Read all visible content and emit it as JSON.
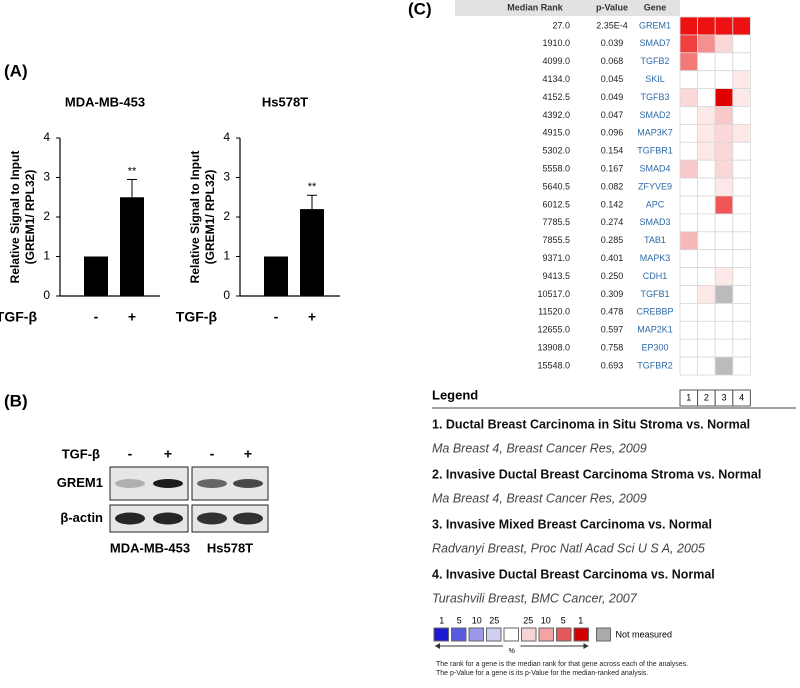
{
  "panel_labels": [
    "(A)",
    "(B)",
    "(C)"
  ],
  "chart_data": [
    {
      "type": "bar",
      "title": "MDA-MB-453",
      "y_label": [
        "Relative Signal to Input",
        "(GREM1/ RPL32)"
      ],
      "x_label": "TGF-β",
      "categories": [
        "-",
        "+"
      ],
      "values": [
        1,
        2.5
      ],
      "errors": [
        0,
        0.45
      ],
      "annotations": [
        null,
        "**"
      ],
      "color": "#000000",
      "ylim": [
        0,
        4
      ],
      "yticks": [
        0,
        1,
        2,
        3,
        4
      ]
    },
    {
      "type": "bar",
      "title": "Hs578T",
      "y_label": [
        "Relative Signal to Input",
        "(GREM1/ RPL32)"
      ],
      "x_label": "TGF-β",
      "categories": [
        "-",
        "+"
      ],
      "values": [
        1,
        2.2
      ],
      "errors": [
        0,
        0.35
      ],
      "annotations": [
        null,
        "**"
      ],
      "color": "#000000",
      "ylim": [
        0,
        4
      ],
      "yticks": [
        0,
        1,
        2,
        3,
        4
      ]
    }
  ],
  "blot": {
    "treatment_label": "TGF-β",
    "treatments": [
      "-",
      "+",
      "-",
      "+"
    ],
    "rows": [
      "GREM1",
      "β-actin"
    ],
    "cell_lines": [
      "MDA-MB-453",
      "Hs578T"
    ]
  },
  "heatmap": {
    "columns": [
      "Median Rank",
      "p-Value",
      "Gene"
    ],
    "analysis_numbers": [
      1,
      2,
      3,
      4
    ],
    "rows": [
      {
        "median_rank": "27.0",
        "p_value": "2.35E-4",
        "gene": "GREM1",
        "cells": [
          "#ee1111",
          "#ee1111",
          "#ee1111",
          "#ee1111"
        ]
      },
      {
        "median_rank": "1910.0",
        "p_value": "0.039",
        "gene": "SMAD7",
        "cells": [
          "#f04040",
          "#f59090",
          "#fbd8d8",
          "#ffffff"
        ]
      },
      {
        "median_rank": "4099.0",
        "p_value": "0.068",
        "gene": "TGFB2",
        "cells": [
          "#f47a7a",
          "#ffffff",
          "#ffffff",
          "#ffffff"
        ]
      },
      {
        "median_rank": "4134.0",
        "p_value": "0.045",
        "gene": "SKIL",
        "cells": [
          "#ffffff",
          "#ffffff",
          "#ffffff",
          "#fde8e8"
        ]
      },
      {
        "median_rank": "4152.5",
        "p_value": "0.049",
        "gene": "TGFB3",
        "cells": [
          "#fbd8d8",
          "#ffffff",
          "#e00000",
          "#fde8e8"
        ]
      },
      {
        "median_rank": "4392.0",
        "p_value": "0.047",
        "gene": "SMAD2",
        "cells": [
          "#ffffff",
          "#fde8e8",
          "#f9c8c8",
          "#ffffff"
        ]
      },
      {
        "median_rank": "4915.0",
        "p_value": "0.096",
        "gene": "MAP3K7",
        "cells": [
          "#ffffff",
          "#fde8e8",
          "#fbd8d8",
          "#fde8e8"
        ]
      },
      {
        "median_rank": "5302.0",
        "p_value": "0.154",
        "gene": "TGFBR1",
        "cells": [
          "#ffffff",
          "#fde8e8",
          "#fbd8d8",
          "#ffffff"
        ]
      },
      {
        "median_rank": "5558.0",
        "p_value": "0.167",
        "gene": "SMAD4",
        "cells": [
          "#f9c8c8",
          "#ffffff",
          "#fbd8d8",
          "#ffffff"
        ]
      },
      {
        "median_rank": "5640.5",
        "p_value": "0.082",
        "gene": "ZFYVE9",
        "cells": [
          "#ffffff",
          "#ffffff",
          "#fde8e8",
          "#ffffff"
        ]
      },
      {
        "median_rank": "6012.5",
        "p_value": "0.142",
        "gene": "APC",
        "cells": [
          "#ffffff",
          "#ffffff",
          "#f25555",
          "#ffffff"
        ]
      },
      {
        "median_rank": "7785.5",
        "p_value": "0.274",
        "gene": "SMAD3",
        "cells": [
          "#ffffff",
          "#ffffff",
          "#ffffff",
          "#ffffff"
        ]
      },
      {
        "median_rank": "7855.5",
        "p_value": "0.285",
        "gene": "TAB1",
        "cells": [
          "#f7b8b8",
          "#ffffff",
          "#ffffff",
          "#ffffff"
        ]
      },
      {
        "median_rank": "9371.0",
        "p_value": "0.401",
        "gene": "MAPK3",
        "cells": [
          "#ffffff",
          "#ffffff",
          "#ffffff",
          "#ffffff"
        ]
      },
      {
        "median_rank": "9413.5",
        "p_value": "0.250",
        "gene": "CDH1",
        "cells": [
          "#ffffff",
          "#ffffff",
          "#fde8e8",
          "#ffffff"
        ]
      },
      {
        "median_rank": "10517.0",
        "p_value": "0.309",
        "gene": "TGFB1",
        "cells": [
          "#ffffff",
          "#fde8e8",
          "#bbbbbb",
          "#ffffff"
        ]
      },
      {
        "median_rank": "11520.0",
        "p_value": "0.478",
        "gene": "CREBBP",
        "cells": [
          "#ffffff",
          "#ffffff",
          "#ffffff",
          "#ffffff"
        ]
      },
      {
        "median_rank": "12655.0",
        "p_value": "0.597",
        "gene": "MAP2K1",
        "cells": [
          "#ffffff",
          "#ffffff",
          "#ffffff",
          "#ffffff"
        ]
      },
      {
        "median_rank": "13908.0",
        "p_value": "0.758",
        "gene": "EP300",
        "cells": [
          "#ffffff",
          "#ffffff",
          "#ffffff",
          "#ffffff"
        ]
      },
      {
        "median_rank": "15548.0",
        "p_value": "0.693",
        "gene": "TGFBR2",
        "cells": [
          "#ffffff",
          "#ffffff",
          "#bbbbbb",
          "#ffffff"
        ]
      }
    ]
  },
  "legend": {
    "title": "Legend",
    "items": [
      {
        "title": "1. Ductal Breast Carcinoma in Situ Stroma vs. Normal",
        "citation": "Ma Breast 4, Breast Cancer Res, 2009"
      },
      {
        "title": "2. Invasive Ductal Breast Carcinoma Stroma vs. Normal",
        "citation": "Ma Breast 4, Breast Cancer Res, 2009"
      },
      {
        "title": "3. Invasive Mixed Breast Carcinoma vs. Normal",
        "citation": "Radvanyi Breast, Proc Natl Acad Sci U S A, 2005"
      },
      {
        "title": "4. Invasive Ductal Breast Carcinoma vs. Normal",
        "citation": "Turashvili Breast, BMC Cancer, 2007"
      }
    ],
    "scale": {
      "labels": [
        1,
        5,
        10,
        25,
        25,
        10,
        5,
        1
      ],
      "unit": "%",
      "colors": [
        "#1a1ad0",
        "#5a5ae0",
        "#9a9ae8",
        "#cfcff2",
        "#ffffff",
        "#f8d4d4",
        "#f2a4a4",
        "#e45a5a",
        "#d40000"
      ],
      "not_measured": "Not measured",
      "not_measured_color": "#aaaaaa"
    },
    "notes": [
      "The rank for a gene is the median rank for that gene across each of the analyses.",
      "The p-Value for a gene is its p-Value for the median-ranked analysis."
    ]
  }
}
